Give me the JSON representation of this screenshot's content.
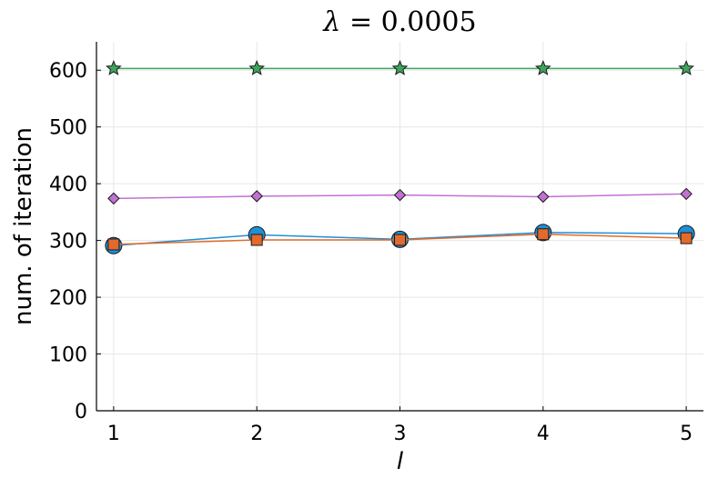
{
  "chart_data": {
    "type": "line",
    "title": "λ = 0.0005",
    "xlabel": "l",
    "ylabel": "num. of iteration",
    "x": [
      1,
      2,
      3,
      4,
      5
    ],
    "xlim": [
      0.88,
      5.12
    ],
    "ylim": [
      0,
      650
    ],
    "xticks": [
      1,
      2,
      3,
      4,
      5
    ],
    "yticks": [
      0,
      100,
      200,
      300,
      400,
      500,
      600
    ],
    "grid": true,
    "legend": "none",
    "series": [
      {
        "values": [
          603,
          603,
          603,
          603,
          603
        ],
        "color": "#3ba55c",
        "marker": "star"
      },
      {
        "values": [
          374,
          378,
          380,
          377,
          382
        ],
        "color": "#c271d2",
        "marker": "diamond"
      },
      {
        "values": [
          291,
          310,
          302,
          314,
          312
        ],
        "color": "#1f8fd6",
        "marker": "circle"
      },
      {
        "values": [
          293,
          301,
          301,
          311,
          304
        ],
        "color": "#e26a2c",
        "marker": "square"
      }
    ]
  }
}
